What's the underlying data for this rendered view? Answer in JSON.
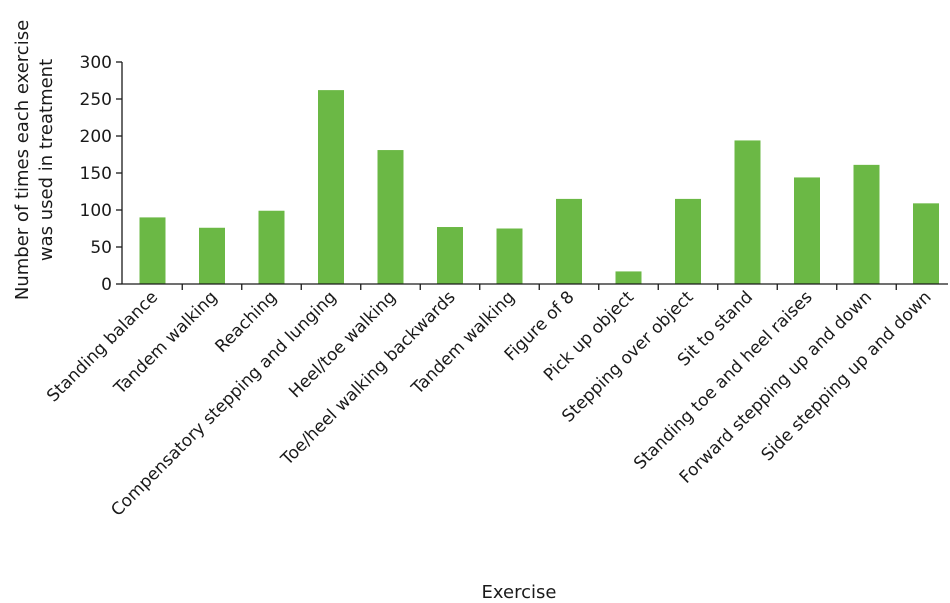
{
  "chart_data": {
    "type": "bar",
    "title": "",
    "xlabel": "Exercise",
    "ylabel_lines": [
      "Number of times each exercise",
      "was used in treatment"
    ],
    "ylim": [
      0,
      300
    ],
    "yticks": [
      0,
      50,
      100,
      150,
      200,
      250,
      300
    ],
    "grid": false,
    "legend": "none",
    "bar_color": "#6bb845",
    "categories": [
      "Standing balance",
      "Tandem walking",
      "Reaching",
      "Compensatory stepping and lunging",
      "Heel/toe walking",
      "Toe/heel walking backwards",
      "Tandem walking",
      "Figure of 8",
      "Pick up object",
      "Stepping over object",
      "Sit to stand",
      "Standing toe and heel raises",
      "Forward stepping up and down",
      "Side stepping up and down"
    ],
    "values": [
      90,
      76,
      99,
      262,
      181,
      77,
      75,
      115,
      17,
      115,
      194,
      144,
      161,
      109
    ]
  }
}
